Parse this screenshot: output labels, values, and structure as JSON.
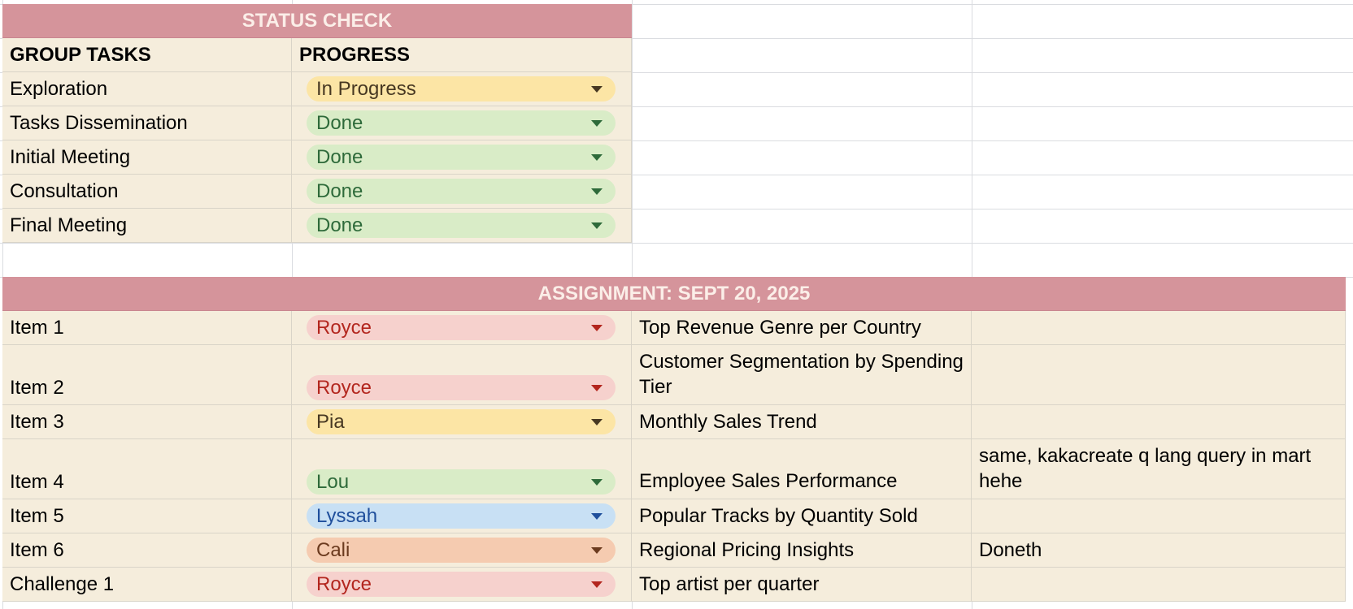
{
  "status_check": {
    "title": "STATUS CHECK",
    "col_tasks": "GROUP TASKS",
    "col_progress": "PROGRESS",
    "rows": [
      {
        "task": "Exploration",
        "progress": "In Progress",
        "color": "yellow"
      },
      {
        "task": "Tasks Dissemination",
        "progress": "Done",
        "color": "green"
      },
      {
        "task": "Initial Meeting",
        "progress": "Done",
        "color": "green"
      },
      {
        "task": "Consultation",
        "progress": "Done",
        "color": "green"
      },
      {
        "task": "Final Meeting",
        "progress": "Done",
        "color": "green"
      }
    ]
  },
  "assignment": {
    "title": "ASSIGNMENT: SEPT 20, 2025",
    "rows": [
      {
        "item": "Item 1",
        "assignee": "Royce",
        "color": "red",
        "description": "Top Revenue Genre per Country",
        "note": ""
      },
      {
        "item": "Item 2",
        "assignee": "Royce",
        "color": "red",
        "description": "Customer Segmentation by Spending Tier",
        "note": ""
      },
      {
        "item": "Item 3",
        "assignee": "Pia",
        "color": "yellow",
        "description": "Monthly Sales Trend",
        "note": ""
      },
      {
        "item": "Item 4",
        "assignee": "Lou",
        "color": "green",
        "description": "Employee Sales Performance",
        "note": "same, kakacreate q lang query in mart hehe"
      },
      {
        "item": "Item 5",
        "assignee": "Lyssah",
        "color": "blue",
        "description": "Popular Tracks by Quantity Sold",
        "note": ""
      },
      {
        "item": "Item 6",
        "assignee": "Cali",
        "color": "orange",
        "description": "Regional Pricing Insights",
        "note": "Doneth"
      },
      {
        "item": "Challenge 1",
        "assignee": "Royce",
        "color": "red",
        "description": "Top artist per quarter",
        "note": ""
      }
    ]
  },
  "chip_colors": {
    "yellow": {
      "bg": "#fce5a5",
      "fg": "#473822"
    },
    "green": {
      "bg": "#d9ecc7",
      "fg": "#2e6a3a"
    },
    "red": {
      "bg": "#f6d1cd",
      "fg": "#b3261e"
    },
    "blue": {
      "bg": "#c8e0f4",
      "fg": "#1f4f9c"
    },
    "orange": {
      "bg": "#f5cbb0",
      "fg": "#6b3a1e"
    }
  }
}
